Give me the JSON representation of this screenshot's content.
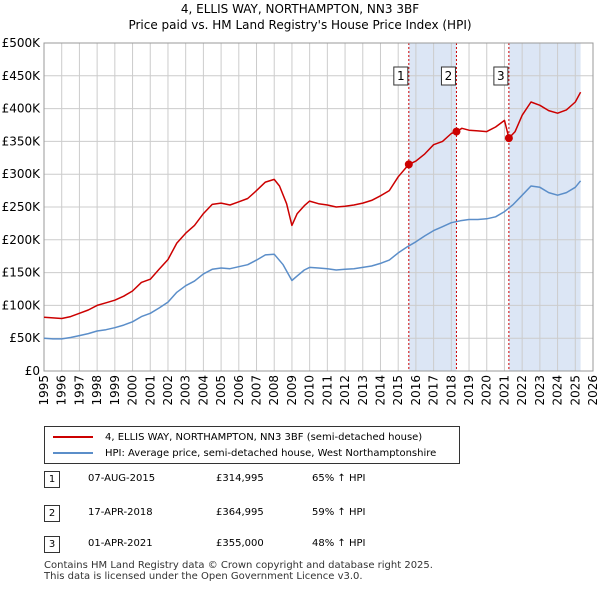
{
  "title": "4, ELLIS WAY, NORTHAMPTON, NN3 3BF",
  "subtitle": "Price paid vs. HM Land Registry's House Price Index (HPI)",
  "colors": {
    "property": "#cc0000",
    "hpi": "#5b8ec9",
    "shade": "#dce6f5",
    "grid": "#cccccc",
    "sale_line": "#cc0000"
  },
  "chart_data": {
    "type": "line",
    "title": "4, ELLIS WAY, NORTHAMPTON, NN3 3BF",
    "subtitle": "Price paid vs. HM Land Registry's House Price Index (HPI)",
    "xlim": [
      1995,
      2026
    ],
    "ylim": [
      0,
      500000
    ],
    "x_ticks": [
      1995,
      1996,
      1997,
      1998,
      1999,
      2000,
      2001,
      2002,
      2003,
      2004,
      2005,
      2006,
      2007,
      2008,
      2009,
      2010,
      2011,
      2012,
      2013,
      2014,
      2015,
      2016,
      2017,
      2018,
      2019,
      2020,
      2021,
      2022,
      2023,
      2024,
      2025,
      2026
    ],
    "y_ticks": [
      {
        "value": 0,
        "label": "£0"
      },
      {
        "value": 50000,
        "label": "£50K"
      },
      {
        "value": 100000,
        "label": "£100K"
      },
      {
        "value": 150000,
        "label": "£150K"
      },
      {
        "value": 200000,
        "label": "£200K"
      },
      {
        "value": 250000,
        "label": "£250K"
      },
      {
        "value": 300000,
        "label": "£300K"
      },
      {
        "value": 350000,
        "label": "£350K"
      },
      {
        "value": 400000,
        "label": "£400K"
      },
      {
        "value": 450000,
        "label": "£450K"
      },
      {
        "value": 500000,
        "label": "£500K"
      }
    ],
    "grid": true,
    "series": [
      {
        "name": "4, ELLIS WAY, NORTHAMPTON, NN3 3BF (semi-detached house)",
        "color": "#cc0000",
        "x": [
          1995,
          1995.5,
          1996,
          1996.5,
          1997,
          1997.5,
          1998,
          1998.5,
          1999,
          1999.5,
          2000,
          2000.5,
          2001,
          2001.5,
          2002,
          2002.5,
          2003,
          2003.5,
          2004,
          2004.5,
          2005,
          2005.5,
          2006,
          2006.5,
          2007,
          2007.5,
          2008,
          2008.3,
          2008.7,
          2009,
          2009.3,
          2009.7,
          2010,
          2010.5,
          2011,
          2011.5,
          2012,
          2012.5,
          2013,
          2013.5,
          2014,
          2014.5,
          2015,
          2015.6,
          2016,
          2016.5,
          2017,
          2017.5,
          2018,
          2018.29,
          2018.6,
          2019,
          2019.5,
          2020,
          2020.5,
          2021,
          2021.25,
          2021.6,
          2022,
          2022.5,
          2023,
          2023.5,
          2024,
          2024.5,
          2025,
          2025.3
        ],
        "y": [
          82000,
          81000,
          80000,
          83000,
          88000,
          93000,
          100000,
          104000,
          108000,
          114000,
          122000,
          135000,
          140000,
          155000,
          170000,
          195000,
          210000,
          222000,
          240000,
          254000,
          256000,
          253000,
          258000,
          263000,
          275000,
          288000,
          292000,
          282000,
          255000,
          222000,
          240000,
          252000,
          259000,
          255000,
          253000,
          250000,
          251000,
          253000,
          256000,
          260000,
          267000,
          275000,
          296000,
          314995,
          320000,
          331000,
          345000,
          350000,
          362000,
          364995,
          370000,
          367000,
          366000,
          365000,
          372000,
          382000,
          355000,
          365000,
          390000,
          410000,
          405000,
          397000,
          393000,
          398000,
          410000,
          425000
        ]
      },
      {
        "name": "HPI: Average price, semi-detached house, West Northamptonshire",
        "color": "#5b8ec9",
        "x": [
          1995,
          1995.5,
          1996,
          1996.5,
          1997,
          1997.5,
          1998,
          1998.5,
          1999,
          1999.5,
          2000,
          2000.5,
          2001,
          2001.5,
          2002,
          2002.5,
          2003,
          2003.5,
          2004,
          2004.5,
          2005,
          2005.5,
          2006,
          2006.5,
          2007,
          2007.5,
          2008,
          2008.5,
          2009,
          2009.3,
          2009.7,
          2010,
          2010.5,
          2011,
          2011.5,
          2012,
          2012.5,
          2013,
          2013.5,
          2014,
          2014.5,
          2015,
          2015.5,
          2016,
          2016.5,
          2017,
          2017.5,
          2018,
          2018.5,
          2019,
          2019.5,
          2020,
          2020.5,
          2021,
          2021.5,
          2022,
          2022.5,
          2023,
          2023.5,
          2024,
          2024.5,
          2025,
          2025.3
        ],
        "y": [
          50000,
          49000,
          49000,
          51000,
          54000,
          57000,
          61000,
          63000,
          66000,
          70000,
          75000,
          83000,
          88000,
          96000,
          105000,
          120000,
          130000,
          137000,
          148000,
          155000,
          157000,
          156000,
          159000,
          162000,
          169000,
          177000,
          178000,
          162000,
          138000,
          145000,
          154000,
          158000,
          157000,
          156000,
          154000,
          155000,
          156000,
          158000,
          160000,
          164000,
          169000,
          180000,
          189000,
          197000,
          206000,
          214000,
          220000,
          226000,
          229000,
          231000,
          231000,
          232000,
          235000,
          243000,
          254000,
          268000,
          282000,
          280000,
          272000,
          268000,
          272000,
          280000,
          290000
        ]
      }
    ],
    "sales": [
      {
        "marker": "1",
        "date": "07-AUG-2015",
        "x": 2015.6,
        "price": 314995,
        "price_label": "£314,995",
        "hpi_change": "65% ↑ HPI"
      },
      {
        "marker": "2",
        "date": "17-APR-2018",
        "x": 2018.29,
        "price": 364995,
        "price_label": "£364,995",
        "hpi_change": "59% ↑ HPI"
      },
      {
        "marker": "3",
        "date": "01-APR-2021",
        "x": 2021.25,
        "price": 355000,
        "price_label": "£355,000",
        "hpi_change": "48% ↑ HPI"
      }
    ],
    "shaded_ranges": [
      [
        2015.6,
        2018.29
      ],
      [
        2021.25,
        2025.3
      ]
    ]
  },
  "legend": {
    "property_label": "4, ELLIS WAY, NORTHAMPTON, NN3 3BF (semi-detached house)",
    "hpi_label": "HPI: Average price, semi-detached house, West Northamptonshire"
  },
  "footer": {
    "line1": "Contains HM Land Registry data © Crown copyright and database right 2025.",
    "line2": "This data is licensed under the Open Government Licence v3.0."
  }
}
